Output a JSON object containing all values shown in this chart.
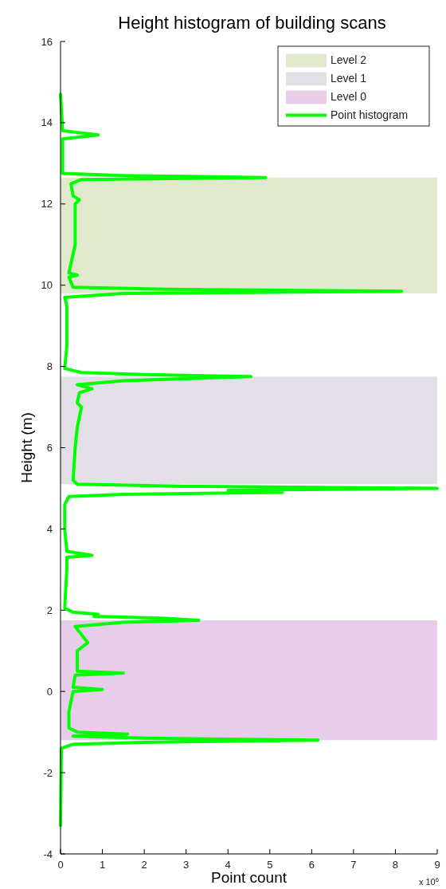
{
  "chart_data": {
    "type": "line",
    "title": "Height histogram of building scans",
    "xlabel": "Point count",
    "ylabel": "Height (m)",
    "annotations": [
      "x 10$^{6}$"
    ],
    "xlim": [
      0,
      9
    ],
    "xticks": [
      0,
      1,
      2,
      3,
      4,
      5,
      6,
      7,
      8,
      9
    ],
    "ylim": [
      -4,
      16
    ],
    "yticks": [
      -4,
      -2,
      0,
      2,
      4,
      6,
      8,
      10,
      12,
      14,
      16
    ],
    "grid": false,
    "legend": "top right",
    "line_style": "solid",
    "marker": "none",
    "bands": [
      {
        "axis": "y",
        "from": 9.8,
        "to": 12.65,
        "label": "Level 2",
        "color": "#e1e9cc"
      },
      {
        "axis": "y",
        "from": 5.1,
        "to": 7.75,
        "label": "Level 1",
        "color": "#e3dfe6"
      },
      {
        "axis": "y",
        "from": -1.2,
        "to": 1.75,
        "label": "Level 0",
        "color": "#e8cdeb"
      }
    ],
    "series": [
      {
        "name": "Point histogram",
        "color": "#00ff00",
        "x": [
          0,
          0.02,
          0.3,
          2.0,
          6.15,
          2.0,
          0.3,
          1.6,
          0.4,
          0.2,
          0.2,
          0.3,
          1.0,
          0.3,
          0.35,
          1.5,
          0.4,
          0.4,
          0.65,
          0.5,
          0.35,
          1.5,
          3.3,
          2.5,
          0.8,
          0.9,
          0.3,
          0.1,
          0.15,
          0.15,
          0.75,
          0.15,
          0.1,
          0.1,
          0.2,
          1.5,
          5.3,
          4.0,
          9.0,
          3.0,
          0.4,
          0.3,
          0.35,
          0.4,
          0.5,
          0.4,
          0.45,
          0.75,
          0.4,
          1.5,
          4.55,
          2.0,
          0.5,
          0.1,
          0.15,
          0.15,
          0.1,
          1.5,
          8.15,
          2.5,
          0.3,
          0.2,
          0.4,
          0.2,
          0.35,
          0.35,
          0.45,
          0.3,
          0.25,
          0.5,
          4.9,
          1.5,
          0.05,
          0.05,
          0.05,
          0.9,
          0.5,
          0.05,
          0
        ],
        "values": [
          -3.3,
          -1.4,
          -1.3,
          -1.25,
          -1.2,
          -1.15,
          -1.1,
          -1.05,
          -1.0,
          -0.9,
          -0.5,
          0,
          0.05,
          0.1,
          0.4,
          0.45,
          0.5,
          1.0,
          1.2,
          1.4,
          1.6,
          1.7,
          1.75,
          1.8,
          1.85,
          1.9,
          1.95,
          2.05,
          3.0,
          3.3,
          3.35,
          3.45,
          4.0,
          4.6,
          4.8,
          4.85,
          4.9,
          4.95,
          5.0,
          5.05,
          5.1,
          5.2,
          6.0,
          6.5,
          7.0,
          7.1,
          7.35,
          7.45,
          7.55,
          7.65,
          7.75,
          7.8,
          7.85,
          7.95,
          8.5,
          9.5,
          9.7,
          9.8,
          9.85,
          9.9,
          9.95,
          10.2,
          10.25,
          10.3,
          11,
          12.0,
          12.1,
          12.2,
          12.5,
          12.6,
          12.65,
          12.7,
          12.75,
          13.0,
          13.6,
          13.7,
          13.75,
          13.8,
          14.7
        ]
      }
    ]
  }
}
